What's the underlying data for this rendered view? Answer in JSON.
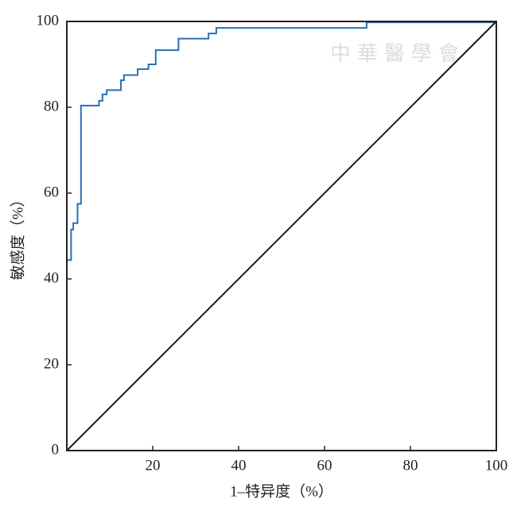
{
  "chart_data": {
    "type": "line",
    "xlabel": "1–特异度（%）",
    "ylabel": "敏感度（%）",
    "watermark": "中華醫學會",
    "xlim": [
      0,
      100
    ],
    "ylim": [
      0,
      100
    ],
    "xticks": [
      20,
      40,
      60,
      80,
      100
    ],
    "yticks": [
      0,
      20,
      40,
      60,
      80,
      100
    ],
    "series": [
      {
        "color": "#2a6fb5",
        "x": [
          0,
          1,
          1,
          1.5,
          1.5,
          2.5,
          2.5,
          3.3,
          3.3,
          7.5,
          7.5,
          8.3,
          8.3,
          9.3,
          9.3,
          12.6,
          12.6,
          13.3,
          13.3,
          16.5,
          16.5,
          19,
          19,
          20.7,
          20.7,
          26,
          26,
          33,
          33,
          34.8,
          34.8,
          69.8,
          69.8,
          100
        ],
        "values": [
          44.4,
          44.4,
          51.5,
          51.5,
          53,
          53,
          57.5,
          57.5,
          80.4,
          80.4,
          81.5,
          81.5,
          83,
          83,
          84,
          84,
          86.3,
          86.3,
          87.5,
          87.5,
          88.9,
          88.9,
          90,
          90,
          93.3,
          93.3,
          96,
          96,
          97.2,
          97.2,
          98.5,
          98.5,
          99.8,
          99.8
        ]
      },
      {
        "color": "#1a1a1a",
        "x": [
          0,
          100
        ],
        "values": [
          0,
          100
        ]
      }
    ]
  }
}
